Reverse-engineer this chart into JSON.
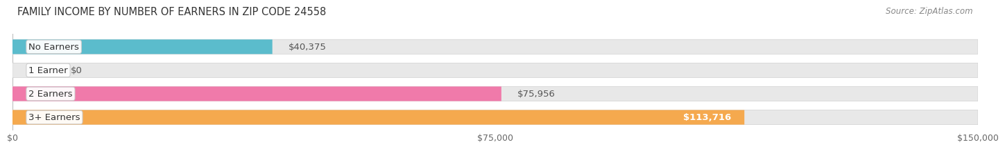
{
  "title": "FAMILY INCOME BY NUMBER OF EARNERS IN ZIP CODE 24558",
  "source": "Source: ZipAtlas.com",
  "categories": [
    "No Earners",
    "1 Earner",
    "2 Earners",
    "3+ Earners"
  ],
  "values": [
    40375,
    0,
    75956,
    113716
  ],
  "value_labels": [
    "$40,375",
    "$0",
    "$75,956",
    "$113,716"
  ],
  "bar_colors": [
    "#5bbccc",
    "#aaaadd",
    "#f07aaa",
    "#f5a94e"
  ],
  "bar_bg_color": "#e8e8e8",
  "xlim": [
    0,
    150000
  ],
  "xtick_values": [
    0,
    75000,
    150000
  ],
  "xtick_labels": [
    "$0",
    "$75,000",
    "$150,000"
  ],
  "fig_bg_color": "#ffffff",
  "title_fontsize": 10.5,
  "label_fontsize": 9.5,
  "source_fontsize": 8.5,
  "bar_height": 0.62,
  "value_label_inside_color": "#ffffff",
  "value_label_outside_color": "#555555",
  "inside_threshold": 113716
}
